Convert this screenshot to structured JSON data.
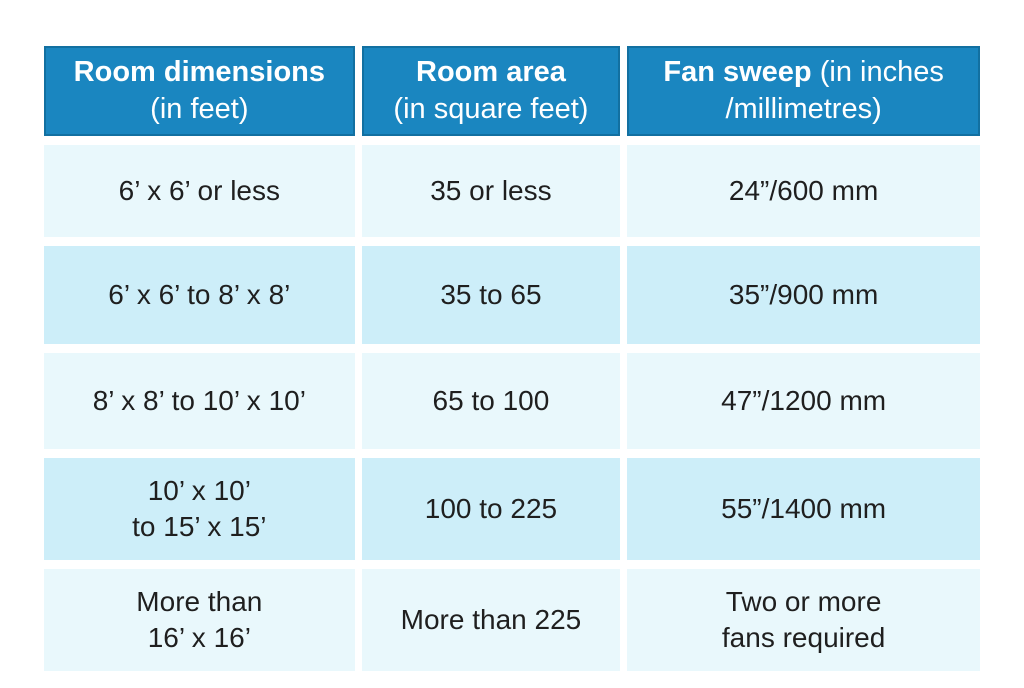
{
  "colors": {
    "header_bg": "#1a86c0",
    "header_border": "#1270a1",
    "header_text": "#ffffff",
    "row_light": "#e9f8fc",
    "row_dark": "#cdeef9",
    "body_text": "#1f1f1f",
    "page_bg": "#ffffff"
  },
  "chart_data": {
    "type": "table",
    "columns": [
      {
        "title": "Room dimensions",
        "subtitle": "(in feet)"
      },
      {
        "title": "Room area",
        "subtitle": "(in square feet)"
      },
      {
        "title": "Fan sweep",
        "subtitle": "(in inches\n/millimetres)"
      }
    ],
    "rows": [
      [
        "6’ x 6’ or less",
        "35 or less",
        "24”/600 mm"
      ],
      [
        "6’ x 6’ to 8’ x 8’",
        "35 to 65",
        "35”/900 mm"
      ],
      [
        "8’ x 8’ to 10’ x 10’",
        "65 to 100",
        "47”/1200 mm"
      ],
      [
        "10’ x 10’\nto 15’ x 15’",
        "100 to 225",
        "55”/1400 mm"
      ],
      [
        "More than\n16’ x 16’",
        "More than 225",
        "Two or more\nfans required"
      ]
    ]
  }
}
